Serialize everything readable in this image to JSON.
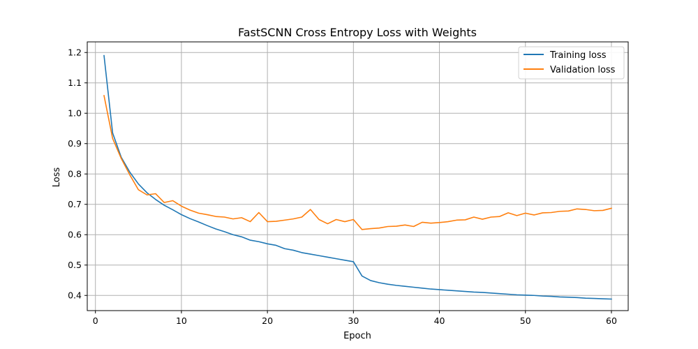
{
  "colors": {
    "training": "#1f77b4",
    "validation": "#ff7f0e",
    "grid": "#b0b0b0"
  },
  "chart_data": {
    "type": "line",
    "title": "FastSCNN Cross Entropy Loss with Weights",
    "xlabel": "Epoch",
    "ylabel": "Loss",
    "xlim": [
      -0.95,
      61.95
    ],
    "ylim": [
      0.35,
      1.235
    ],
    "xticks": [
      0,
      10,
      20,
      30,
      40,
      50,
      60
    ],
    "yticks": [
      0.4,
      0.5,
      0.6,
      0.7,
      0.8,
      0.9,
      1.0,
      1.1,
      1.2
    ],
    "ytick_labels": [
      "0.4",
      "0.5",
      "0.6",
      "0.7",
      "0.8",
      "0.9",
      "1.0",
      "1.1",
      "1.2"
    ],
    "grid": true,
    "legend_position": "top-right",
    "x": [
      1,
      2,
      3,
      4,
      5,
      6,
      7,
      8,
      9,
      10,
      11,
      12,
      13,
      14,
      15,
      16,
      17,
      18,
      19,
      20,
      21,
      22,
      23,
      24,
      25,
      26,
      27,
      28,
      29,
      30,
      31,
      32,
      33,
      34,
      35,
      36,
      37,
      38,
      39,
      40,
      41,
      42,
      43,
      44,
      45,
      46,
      47,
      48,
      49,
      50,
      51,
      52,
      53,
      54,
      55,
      56,
      57,
      58,
      59,
      60
    ],
    "series": [
      {
        "name": "Training loss",
        "values": [
          1.19,
          0.935,
          0.855,
          0.806,
          0.767,
          0.738,
          0.716,
          0.697,
          0.682,
          0.666,
          0.653,
          0.642,
          0.63,
          0.619,
          0.61,
          0.6,
          0.593,
          0.582,
          0.577,
          0.57,
          0.565,
          0.554,
          0.549,
          0.541,
          0.536,
          0.531,
          0.526,
          0.521,
          0.516,
          0.511,
          0.464,
          0.449,
          0.442,
          0.437,
          0.433,
          0.43,
          0.427,
          0.424,
          0.421,
          0.419,
          0.417,
          0.415,
          0.413,
          0.411,
          0.41,
          0.408,
          0.406,
          0.404,
          0.402,
          0.401,
          0.4,
          0.398,
          0.397,
          0.395,
          0.394,
          0.393,
          0.391,
          0.39,
          0.389,
          0.388
        ]
      },
      {
        "name": "Validation loss",
        "values": [
          1.058,
          0.917,
          0.851,
          0.797,
          0.748,
          0.731,
          0.735,
          0.706,
          0.712,
          0.694,
          0.681,
          0.671,
          0.666,
          0.66,
          0.658,
          0.652,
          0.656,
          0.643,
          0.673,
          0.643,
          0.644,
          0.648,
          0.652,
          0.658,
          0.683,
          0.65,
          0.636,
          0.65,
          0.643,
          0.65,
          0.617,
          0.62,
          0.622,
          0.627,
          0.628,
          0.632,
          0.627,
          0.641,
          0.638,
          0.64,
          0.643,
          0.648,
          0.649,
          0.658,
          0.651,
          0.658,
          0.66,
          0.672,
          0.663,
          0.671,
          0.665,
          0.672,
          0.673,
          0.677,
          0.678,
          0.685,
          0.683,
          0.679,
          0.68,
          0.687
        ]
      }
    ]
  }
}
